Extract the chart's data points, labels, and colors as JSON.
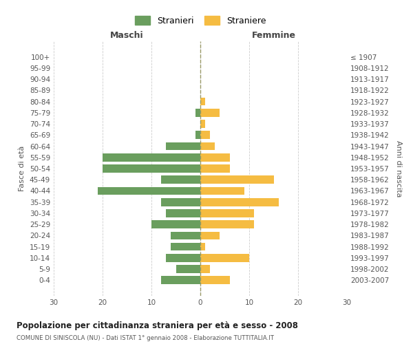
{
  "age_groups": [
    "0-4",
    "5-9",
    "10-14",
    "15-19",
    "20-24",
    "25-29",
    "30-34",
    "35-39",
    "40-44",
    "45-49",
    "50-54",
    "55-59",
    "60-64",
    "65-69",
    "70-74",
    "75-79",
    "80-84",
    "85-89",
    "90-94",
    "95-99",
    "100+"
  ],
  "birth_years": [
    "2003-2007",
    "1998-2002",
    "1993-1997",
    "1988-1992",
    "1983-1987",
    "1978-1982",
    "1973-1977",
    "1968-1972",
    "1963-1967",
    "1958-1962",
    "1953-1957",
    "1948-1952",
    "1943-1947",
    "1938-1942",
    "1933-1937",
    "1928-1932",
    "1923-1927",
    "1918-1922",
    "1913-1917",
    "1908-1912",
    "≤ 1907"
  ],
  "males": [
    8,
    5,
    7,
    6,
    6,
    10,
    7,
    8,
    21,
    8,
    20,
    20,
    7,
    1,
    0,
    1,
    0,
    0,
    0,
    0,
    0
  ],
  "females": [
    6,
    2,
    10,
    1,
    4,
    11,
    11,
    16,
    9,
    15,
    6,
    6,
    3,
    2,
    1,
    4,
    1,
    0,
    0,
    0,
    0
  ],
  "male_color": "#6a9e5e",
  "female_color": "#f5bc42",
  "title": "Popolazione per cittadinanza straniera per età e sesso - 2008",
  "subtitle": "COMUNE DI SINISCOLA (NU) - Dati ISTAT 1° gennaio 2008 - Elaborazione TUTTITALIA.IT",
  "xlabel_left": "Maschi",
  "xlabel_right": "Femmine",
  "ylabel_left": "Fasce di età",
  "ylabel_right": "Anni di nascita",
  "legend_male": "Stranieri",
  "legend_female": "Straniere",
  "xlim": 30,
  "bg_color": "#ffffff",
  "grid_color": "#cccccc"
}
